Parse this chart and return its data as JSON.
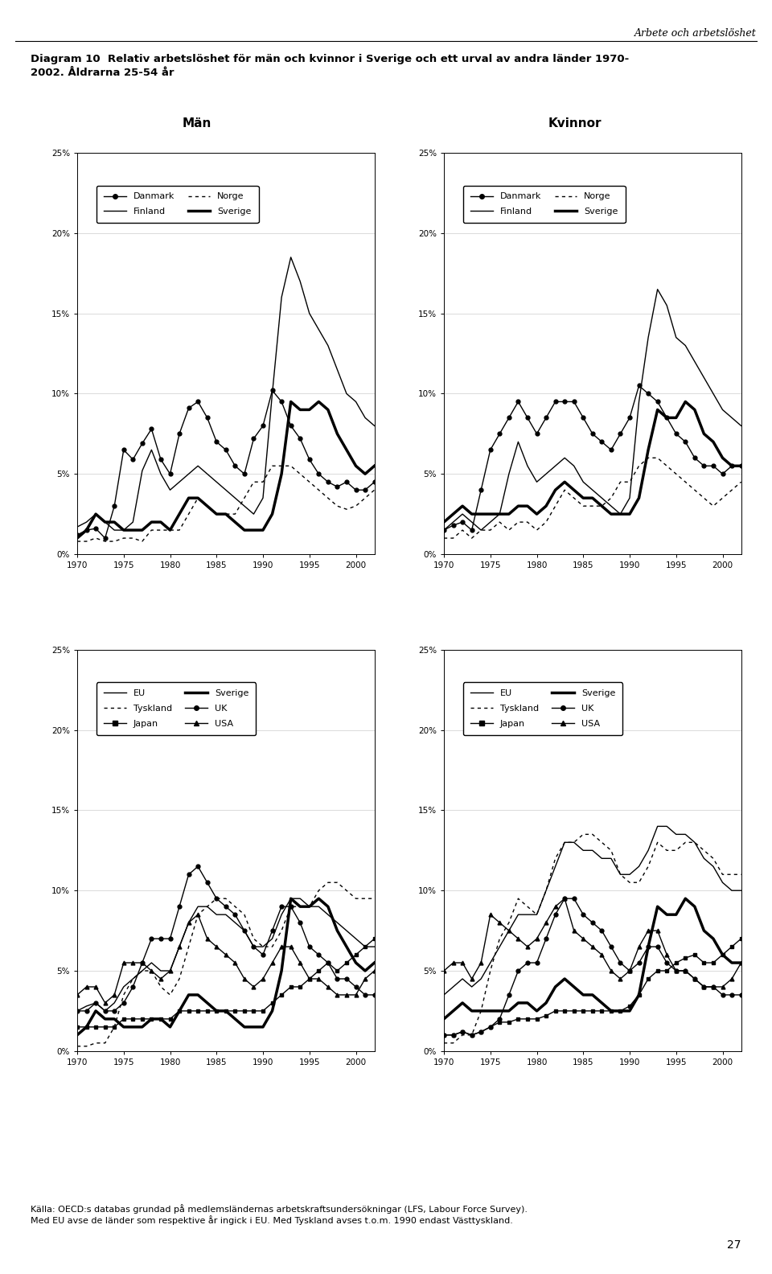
{
  "title_main": "Diagram 10  Relativ arbetslöshet för män och kvinnor i Sverige och ett urval av andra länder 1970-\n2002. Åldrarna 25-54 år",
  "header_right": "Arbete och arbetslöshet",
  "subtitle_left": "Män",
  "subtitle_right": "Kvinnor",
  "years": [
    1970,
    1971,
    1972,
    1973,
    1974,
    1975,
    1976,
    1977,
    1978,
    1979,
    1980,
    1981,
    1982,
    1983,
    1984,
    1985,
    1986,
    1987,
    1988,
    1989,
    1990,
    1991,
    1992,
    1993,
    1994,
    1995,
    1996,
    1997,
    1998,
    1999,
    2000,
    2001,
    2002
  ],
  "footer": "Källa: OECD:s databas grundad på medlemsländernas arbetskraftsundersökningar (LFS, Labour Force Survey).\nMed EU avse de länder som respektive år ingick i EU. Med Tyskland avses t.o.m. 1990 endast Västtyskland.",
  "page_number": "27",
  "men_nordic": {
    "Danmark": [
      1.2,
      1.5,
      1.6,
      1.0,
      3.0,
      6.5,
      5.9,
      6.9,
      7.8,
      5.9,
      5.0,
      7.5,
      9.1,
      9.5,
      8.5,
      7.0,
      6.5,
      5.5,
      5.0,
      7.2,
      8.0,
      10.2,
      9.5,
      8.0,
      7.2,
      5.9,
      5.0,
      4.5,
      4.2,
      4.5,
      4.0,
      4.0,
      4.5
    ],
    "Finland": [
      1.7,
      2.0,
      2.5,
      2.0,
      1.5,
      1.5,
      2.0,
      5.2,
      6.5,
      5.0,
      4.0,
      4.5,
      5.0,
      5.5,
      5.0,
      4.5,
      4.0,
      3.5,
      3.0,
      2.5,
      3.5,
      10.0,
      16.0,
      18.5,
      17.0,
      15.0,
      14.0,
      13.0,
      11.5,
      10.0,
      9.5,
      8.5,
      8.0
    ],
    "Norge": [
      0.8,
      0.8,
      1.0,
      0.8,
      0.8,
      1.0,
      1.0,
      0.8,
      1.5,
      1.5,
      1.5,
      1.5,
      2.5,
      3.5,
      3.0,
      2.5,
      2.5,
      2.5,
      3.5,
      4.5,
      4.5,
      5.5,
      5.5,
      5.5,
      5.0,
      4.5,
      4.0,
      3.5,
      3.0,
      2.8,
      3.0,
      3.5,
      4.0
    ],
    "Sverige": [
      1.0,
      1.5,
      2.5,
      2.0,
      2.0,
      1.5,
      1.5,
      1.5,
      2.0,
      2.0,
      1.5,
      2.5,
      3.5,
      3.5,
      3.0,
      2.5,
      2.5,
      2.0,
      1.5,
      1.5,
      1.5,
      2.5,
      5.0,
      9.5,
      9.0,
      9.0,
      9.5,
      9.0,
      7.5,
      6.5,
      5.5,
      5.0,
      5.5
    ]
  },
  "women_nordic": {
    "Danmark": [
      1.5,
      1.8,
      2.0,
      1.5,
      4.0,
      6.5,
      7.5,
      8.5,
      9.5,
      8.5,
      7.5,
      8.5,
      9.5,
      9.5,
      9.5,
      8.5,
      7.5,
      7.0,
      6.5,
      7.5,
      8.5,
      10.5,
      10.0,
      9.5,
      8.5,
      7.5,
      7.0,
      6.0,
      5.5,
      5.5,
      5.0,
      5.5,
      5.5
    ],
    "Finland": [
      1.5,
      2.0,
      2.5,
      2.0,
      1.5,
      2.0,
      2.5,
      5.0,
      7.0,
      5.5,
      4.5,
      5.0,
      5.5,
      6.0,
      5.5,
      4.5,
      4.0,
      3.5,
      3.0,
      2.5,
      3.5,
      9.5,
      13.5,
      16.5,
      15.5,
      13.5,
      13.0,
      12.0,
      11.0,
      10.0,
      9.0,
      8.5,
      8.0
    ],
    "Norge": [
      1.0,
      1.0,
      1.5,
      1.0,
      1.5,
      1.5,
      2.0,
      1.5,
      2.0,
      2.0,
      1.5,
      2.0,
      3.0,
      4.0,
      3.5,
      3.0,
      3.0,
      3.0,
      3.5,
      4.5,
      4.5,
      5.5,
      6.0,
      6.0,
      5.5,
      5.0,
      4.5,
      4.0,
      3.5,
      3.0,
      3.5,
      4.0,
      4.5
    ],
    "Sverige": [
      2.0,
      2.5,
      3.0,
      2.5,
      2.5,
      2.5,
      2.5,
      2.5,
      3.0,
      3.0,
      2.5,
      3.0,
      4.0,
      4.5,
      4.0,
      3.5,
      3.5,
      3.0,
      2.5,
      2.5,
      2.5,
      3.5,
      6.5,
      9.0,
      8.5,
      8.5,
      9.5,
      9.0,
      7.5,
      7.0,
      6.0,
      5.5,
      5.5
    ]
  },
  "men_intl": {
    "EU": [
      2.5,
      2.8,
      3.0,
      2.5,
      3.0,
      4.0,
      4.5,
      5.0,
      5.5,
      5.0,
      5.0,
      6.5,
      8.0,
      9.0,
      9.0,
      8.5,
      8.5,
      8.0,
      7.5,
      6.5,
      6.5,
      7.0,
      8.5,
      9.5,
      9.5,
      9.0,
      9.0,
      8.5,
      8.0,
      7.5,
      7.0,
      6.5,
      6.5
    ],
    "Japan": [
      1.5,
      1.5,
      1.5,
      1.5,
      1.5,
      2.0,
      2.0,
      2.0,
      2.0,
      2.0,
      2.0,
      2.5,
      2.5,
      2.5,
      2.5,
      2.5,
      2.5,
      2.5,
      2.5,
      2.5,
      2.5,
      3.0,
      3.5,
      4.0,
      4.0,
      4.5,
      5.0,
      5.5,
      5.0,
      5.5,
      6.0,
      6.5,
      7.0
    ],
    "UK": [
      2.5,
      2.5,
      3.0,
      2.5,
      2.5,
      3.0,
      4.0,
      5.5,
      7.0,
      7.0,
      7.0,
      9.0,
      11.0,
      11.5,
      10.5,
      9.5,
      9.0,
      8.5,
      7.5,
      6.5,
      6.0,
      7.5,
      9.0,
      9.0,
      8.0,
      6.5,
      6.0,
      5.5,
      4.5,
      4.5,
      4.0,
      3.5,
      3.5
    ],
    "Sverige": [
      1.0,
      1.5,
      2.5,
      2.0,
      2.0,
      1.5,
      1.5,
      1.5,
      2.0,
      2.0,
      1.5,
      2.5,
      3.5,
      3.5,
      3.0,
      2.5,
      2.5,
      2.0,
      1.5,
      1.5,
      1.5,
      2.5,
      5.0,
      9.5,
      9.0,
      9.0,
      9.5,
      9.0,
      7.5,
      6.5,
      5.5,
      5.0,
      5.5
    ],
    "Tyskland": [
      0.3,
      0.3,
      0.5,
      0.5,
      1.5,
      3.5,
      4.5,
      5.0,
      5.0,
      4.0,
      3.5,
      4.5,
      6.5,
      8.5,
      9.0,
      9.5,
      9.5,
      9.0,
      8.5,
      7.0,
      6.5,
      6.5,
      7.5,
      9.0,
      9.0,
      9.0,
      10.0,
      10.5,
      10.5,
      10.0,
      9.5,
      9.5,
      9.5
    ],
    "USA": [
      3.5,
      4.0,
      4.0,
      3.0,
      3.5,
      5.5,
      5.5,
      5.5,
      5.0,
      4.5,
      5.0,
      6.5,
      8.0,
      8.5,
      7.0,
      6.5,
      6.0,
      5.5,
      4.5,
      4.0,
      4.5,
      5.5,
      6.5,
      6.5,
      5.5,
      4.5,
      4.5,
      4.0,
      3.5,
      3.5,
      3.5,
      4.5,
      5.0
    ]
  },
  "women_intl": {
    "EU": [
      3.5,
      4.0,
      4.5,
      4.0,
      4.5,
      5.5,
      6.5,
      7.5,
      8.5,
      8.5,
      8.5,
      10.0,
      11.5,
      13.0,
      13.0,
      12.5,
      12.5,
      12.0,
      12.0,
      11.0,
      11.0,
      11.5,
      12.5,
      14.0,
      14.0,
      13.5,
      13.5,
      13.0,
      12.0,
      11.5,
      10.5,
      10.0,
      10.0
    ],
    "Japan": [
      1.0,
      1.0,
      1.2,
      1.0,
      1.2,
      1.5,
      1.8,
      1.8,
      2.0,
      2.0,
      2.0,
      2.2,
      2.5,
      2.5,
      2.5,
      2.5,
      2.5,
      2.5,
      2.5,
      2.5,
      2.8,
      3.5,
      4.5,
      5.0,
      5.0,
      5.5,
      5.8,
      6.0,
      5.5,
      5.5,
      6.0,
      6.5,
      7.0
    ],
    "UK": [
      1.0,
      1.0,
      1.2,
      1.0,
      1.2,
      1.5,
      2.0,
      3.5,
      5.0,
      5.5,
      5.5,
      7.0,
      8.5,
      9.5,
      9.5,
      8.5,
      8.0,
      7.5,
      6.5,
      5.5,
      5.0,
      5.5,
      6.5,
      6.5,
      5.5,
      5.0,
      5.0,
      4.5,
      4.0,
      4.0,
      3.5,
      3.5,
      3.5
    ],
    "Sverige": [
      2.0,
      2.5,
      3.0,
      2.5,
      2.5,
      2.5,
      2.5,
      2.5,
      3.0,
      3.0,
      2.5,
      3.0,
      4.0,
      4.5,
      4.0,
      3.5,
      3.5,
      3.0,
      2.5,
      2.5,
      2.5,
      3.5,
      6.5,
      9.0,
      8.5,
      8.5,
      9.5,
      9.0,
      7.5,
      7.0,
      6.0,
      5.5,
      5.5
    ],
    "Tyskland": [
      0.5,
      0.5,
      1.0,
      1.0,
      2.5,
      5.0,
      7.0,
      8.0,
      9.5,
      9.0,
      8.5,
      10.0,
      12.0,
      13.0,
      13.0,
      13.5,
      13.5,
      13.0,
      12.5,
      11.0,
      10.5,
      10.5,
      11.5,
      13.0,
      12.5,
      12.5,
      13.0,
      13.0,
      12.5,
      12.0,
      11.0,
      11.0,
      11.0
    ],
    "USA": [
      5.0,
      5.5,
      5.5,
      4.5,
      5.5,
      8.5,
      8.0,
      7.5,
      7.0,
      6.5,
      7.0,
      8.0,
      9.0,
      9.5,
      7.5,
      7.0,
      6.5,
      6.0,
      5.0,
      4.5,
      5.0,
      6.5,
      7.5,
      7.5,
      6.0,
      5.0,
      5.0,
      4.5,
      4.0,
      4.0,
      4.0,
      4.5,
      5.5
    ]
  }
}
